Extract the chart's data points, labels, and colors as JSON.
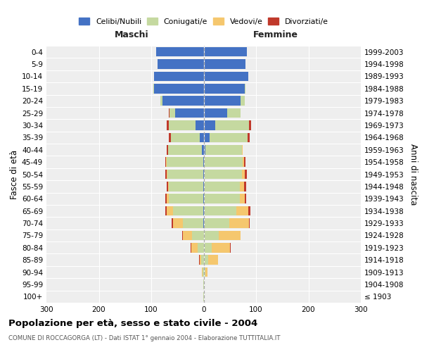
{
  "age_groups": [
    "100+",
    "95-99",
    "90-94",
    "85-89",
    "80-84",
    "75-79",
    "70-74",
    "65-69",
    "60-64",
    "55-59",
    "50-54",
    "45-49",
    "40-44",
    "35-39",
    "30-34",
    "25-29",
    "20-24",
    "15-19",
    "10-14",
    "5-9",
    "0-4"
  ],
  "birth_years": [
    "≤ 1903",
    "1904-1908",
    "1909-1913",
    "1914-1918",
    "1919-1923",
    "1924-1928",
    "1929-1933",
    "1934-1938",
    "1939-1943",
    "1944-1948",
    "1949-1953",
    "1954-1958",
    "1959-1963",
    "1964-1968",
    "1969-1973",
    "1974-1978",
    "1979-1983",
    "1984-1988",
    "1989-1993",
    "1994-1998",
    "1999-2003"
  ],
  "male_celibi": [
    0,
    0,
    0,
    0,
    0,
    0,
    1,
    1,
    1,
    1,
    1,
    1,
    3,
    8,
    15,
    55,
    78,
    95,
    95,
    88,
    90
  ],
  "male_coniugati": [
    1,
    1,
    2,
    5,
    12,
    22,
    38,
    58,
    65,
    65,
    68,
    70,
    65,
    55,
    52,
    10,
    4,
    1,
    0,
    0,
    0
  ],
  "male_vedovi": [
    0,
    0,
    1,
    3,
    12,
    18,
    20,
    12,
    4,
    2,
    1,
    1,
    0,
    0,
    0,
    0,
    0,
    0,
    0,
    0,
    0
  ],
  "male_divorziati": [
    0,
    0,
    0,
    1,
    1,
    1,
    2,
    2,
    3,
    3,
    3,
    1,
    3,
    3,
    3,
    1,
    1,
    0,
    0,
    0,
    0
  ],
  "female_celibi": [
    0,
    0,
    0,
    1,
    1,
    1,
    1,
    1,
    1,
    1,
    1,
    2,
    3,
    12,
    22,
    45,
    70,
    78,
    85,
    80,
    82
  ],
  "female_coniugati": [
    0,
    1,
    3,
    8,
    15,
    28,
    48,
    62,
    68,
    68,
    72,
    72,
    70,
    72,
    65,
    25,
    8,
    2,
    0,
    0,
    0
  ],
  "female_vedovi": [
    1,
    1,
    5,
    18,
    35,
    42,
    38,
    22,
    10,
    8,
    5,
    3,
    1,
    0,
    0,
    0,
    0,
    0,
    0,
    0,
    0
  ],
  "female_divorziati": [
    0,
    0,
    0,
    0,
    1,
    0,
    1,
    4,
    2,
    4,
    4,
    3,
    1,
    4,
    3,
    1,
    1,
    0,
    0,
    0,
    0
  ],
  "colors": {
    "celibi": "#4472c4",
    "coniugati": "#c5d9a0",
    "vedovi": "#f5c76e",
    "divorziati": "#c0392b"
  },
  "title": "Popolazione per età, sesso e stato civile - 2004",
  "subtitle": "COMUNE DI ROCCAGORGA (LT) - Dati ISTAT 1° gennaio 2004 - Elaborazione TUTTITALIA.IT",
  "maschi_label": "Maschi",
  "femmine_label": "Femmine",
  "ylabel_left": "Fasce di età",
  "ylabel_right": "Anni di nascita",
  "xlim": 300,
  "xticklabels": [
    "300",
    "200",
    "100",
    "0",
    "100",
    "200",
    "300"
  ],
  "bg_color": "#eeeeee"
}
